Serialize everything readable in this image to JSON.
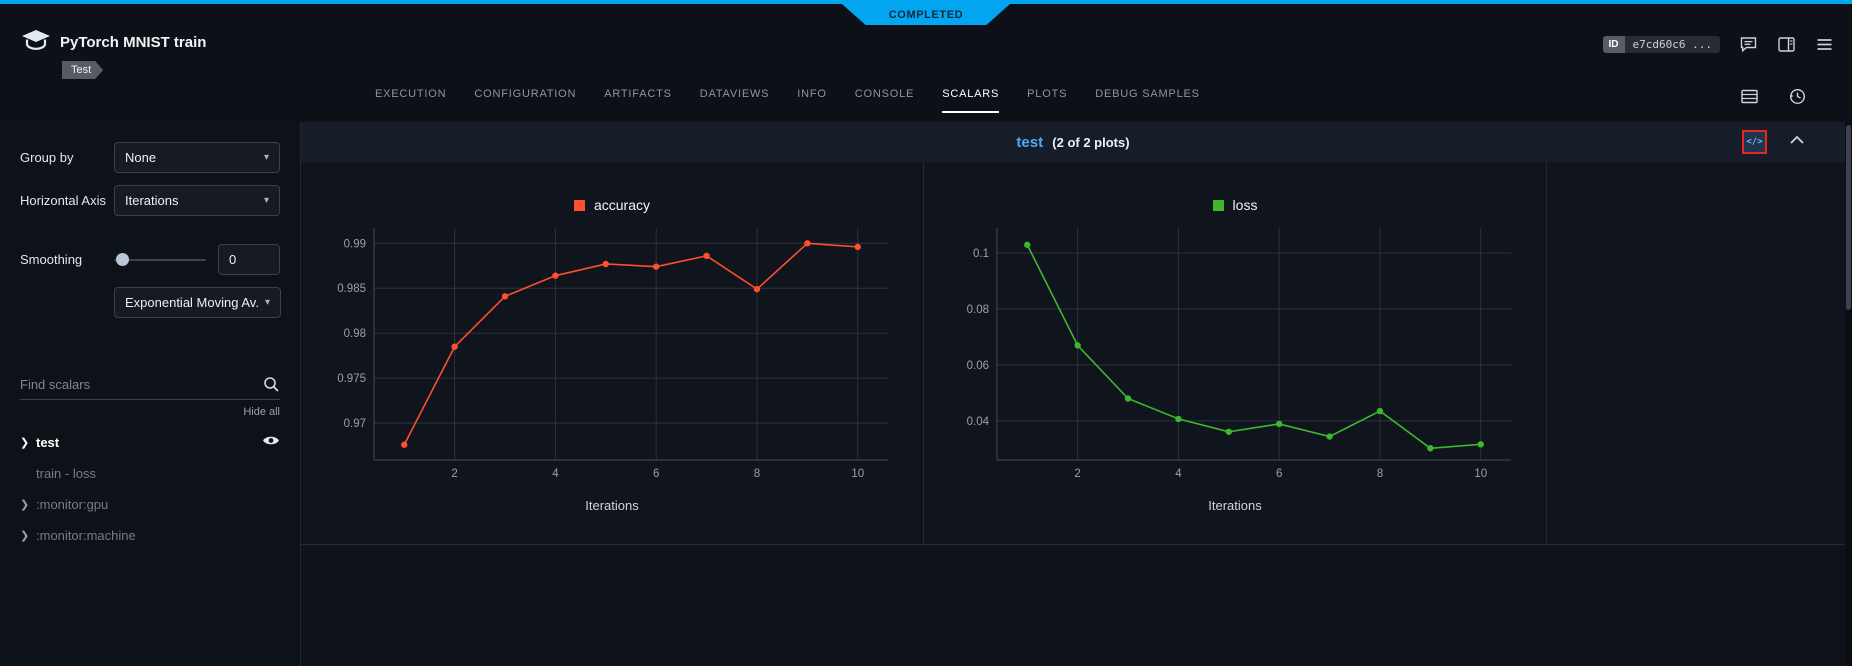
{
  "status_banner": {
    "label": "COMPLETED"
  },
  "header": {
    "app_title": "PyTorch MNIST train",
    "tag": "Test",
    "id_label": "ID",
    "id_value": "e7cd60c6 ..."
  },
  "tabs": {
    "items": [
      "EXECUTION",
      "CONFIGURATION",
      "ARTIFACTS",
      "DATAVIEWS",
      "INFO",
      "CONSOLE",
      "SCALARS",
      "PLOTS",
      "DEBUG SAMPLES"
    ],
    "active": "SCALARS"
  },
  "sidebar": {
    "group_by": {
      "label": "Group by",
      "value": "None"
    },
    "horizontal_axis": {
      "label": "Horizontal Axis",
      "value": "Iterations"
    },
    "smoothing": {
      "label": "Smoothing",
      "value": "0",
      "type_value": "Exponential Moving Av..."
    },
    "search": {
      "placeholder": "Find scalars"
    },
    "hide_all": "Hide all",
    "metrics": [
      {
        "label": "test"
      },
      {
        "label": "train - loss"
      },
      {
        "label": ":monitor:gpu"
      },
      {
        "label": ":monitor:machine"
      }
    ]
  },
  "section": {
    "title": "test",
    "count": "(2 of 2 plots)"
  },
  "chart_data": [
    {
      "type": "line",
      "title": "accuracy",
      "xlabel": "Iterations",
      "color": "#ff4e2d",
      "x": [
        1,
        2,
        3,
        4,
        5,
        6,
        7,
        8,
        9,
        10
      ],
      "values": [
        0.9676,
        0.9785,
        0.9841,
        0.9864,
        0.9877,
        0.9874,
        0.9886,
        0.9849,
        0.99,
        0.9896
      ],
      "xticks": [
        2,
        4,
        6,
        8,
        10
      ],
      "yticks": [
        0.97,
        0.975,
        0.98,
        0.985,
        0.99
      ],
      "xlim": [
        0.4,
        10.6
      ],
      "ylim": [
        0.9659,
        0.9917
      ],
      "grid": true,
      "legend_position": "top-center"
    },
    {
      "type": "line",
      "title": "loss",
      "xlabel": "Iterations",
      "color": "#3cb72e",
      "x": [
        1,
        2,
        3,
        4,
        5,
        6,
        7,
        8,
        9,
        10
      ],
      "values": [
        0.103,
        0.067,
        0.048,
        0.0407,
        0.0361,
        0.0389,
        0.0344,
        0.0435,
        0.0302,
        0.0316
      ],
      "xticks": [
        2,
        4,
        6,
        8,
        10
      ],
      "yticks": [
        0.04,
        0.06,
        0.08,
        0.1
      ],
      "xlim": [
        0.4,
        10.6
      ],
      "ylim": [
        0.026,
        0.109
      ],
      "grid": true,
      "legend_position": "top-center"
    }
  ]
}
